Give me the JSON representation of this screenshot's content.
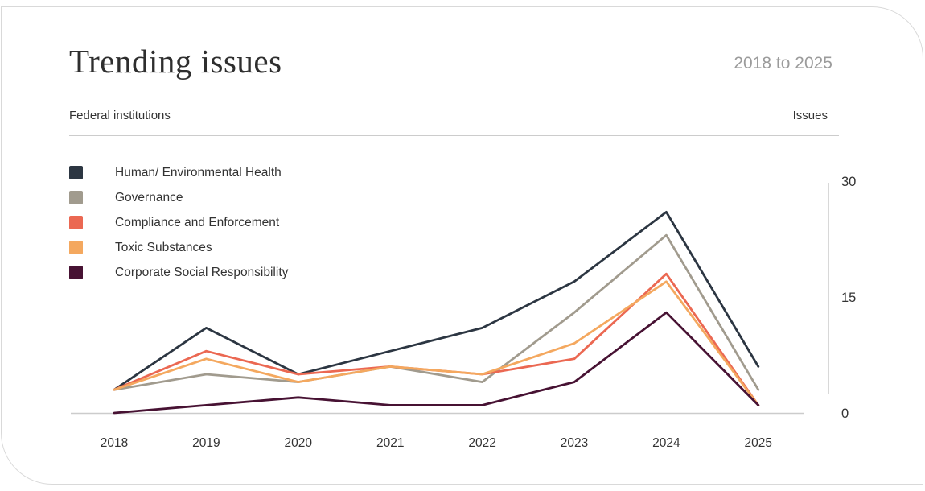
{
  "header": {
    "title": "Trending issues",
    "date_range": "2018 to 2025",
    "left_label": "Federal institutions",
    "right_label": "Issues"
  },
  "chart_data": {
    "type": "line",
    "title": "Trending issues",
    "subtitle": "2018 to 2025",
    "xlabel": "Federal institutions",
    "ylabel": "Issues",
    "x": [
      "2018",
      "2019",
      "2020",
      "2021",
      "2022",
      "2023",
      "2024",
      "2025"
    ],
    "ylim": [
      0,
      30
    ],
    "yticks": [
      0,
      15,
      30
    ],
    "grid": false,
    "legend_position": "top-left",
    "axis_color": "#cccccc",
    "tick_label_color": "#333333",
    "series": [
      {
        "name": "Human/ Environmental Health",
        "color": "#2c3642",
        "values": [
          3,
          11,
          5,
          8,
          11,
          17,
          26,
          6
        ]
      },
      {
        "name": "Governance",
        "color": "#a19b8e",
        "values": [
          3,
          5,
          4,
          6,
          4,
          13,
          23,
          3
        ]
      },
      {
        "name": "Compliance and Enforcement",
        "color": "#eb6852",
        "values": [
          3,
          8,
          5,
          6,
          5,
          7,
          18,
          1
        ]
      },
      {
        "name": "Toxic Substances",
        "color": "#f4a85f",
        "values": [
          3,
          7,
          4,
          6,
          5,
          9,
          17,
          1
        ]
      },
      {
        "name": "Corporate Social Responsibility",
        "color": "#471233",
        "values": [
          0,
          1,
          2,
          1,
          1,
          4,
          13,
          1
        ]
      }
    ]
  }
}
